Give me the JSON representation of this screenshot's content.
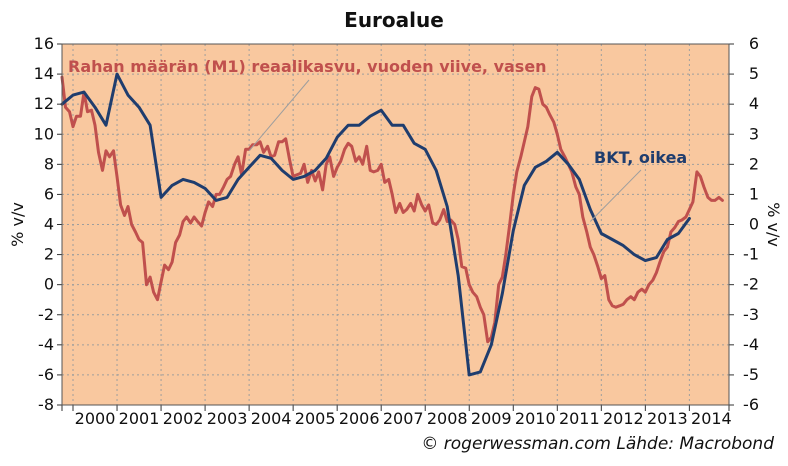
{
  "chart_data": {
    "type": "line",
    "title": "Euroalue",
    "credit": "© rogerwessman.com Lähde: Macrobond",
    "xlabel": "",
    "ylabel_left": "% v/v",
    "ylabel_right": "% v/v",
    "ylim_left": [
      -8,
      16
    ],
    "ylim_right": [
      -6,
      6
    ],
    "xlim": [
      1999.75,
      2014.9
    ],
    "x_tick_labels": [
      "2000",
      "2001",
      "2002",
      "2003",
      "2004",
      "2005",
      "2006",
      "2007",
      "2008",
      "2009",
      "2010",
      "2011",
      "2012",
      "2013",
      "2014"
    ],
    "y_ticks_left": [
      "16",
      "14",
      "12",
      "10",
      "8",
      "6",
      "4",
      "2",
      "0",
      "-2",
      "-4",
      "-6",
      "-8"
    ],
    "y_ticks_right": [
      "6",
      "5",
      "4",
      "3",
      "2",
      "1",
      "0",
      "-1",
      "-2",
      "-3",
      "-4",
      "-5",
      "-6"
    ],
    "grid": true,
    "background": "#f9c89f",
    "series": [
      {
        "name": "Rahan määrän (M1) reaalikasvu, vuoden viive, vasen",
        "label": "Rahan määrän (M1) reaalikasvu, vuoden viive, vasen",
        "axis": "left",
        "color": "#c0504d",
        "x": [
          1999.75,
          1999.83,
          1999.92,
          2000.0,
          2000.08,
          2000.17,
          2000.25,
          2000.33,
          2000.42,
          2000.5,
          2000.58,
          2000.67,
          2000.75,
          2000.83,
          2000.92,
          2001.0,
          2001.08,
          2001.17,
          2001.25,
          2001.33,
          2001.42,
          2001.5,
          2001.58,
          2001.67,
          2001.75,
          2001.83,
          2001.92,
          2002.0,
          2002.08,
          2002.17,
          2002.25,
          2002.33,
          2002.42,
          2002.5,
          2002.58,
          2002.67,
          2002.75,
          2002.83,
          2002.92,
          2003.0,
          2003.08,
          2003.17,
          2003.25,
          2003.33,
          2003.42,
          2003.5,
          2003.58,
          2003.67,
          2003.75,
          2003.83,
          2003.92,
          2004.0,
          2004.08,
          2004.17,
          2004.25,
          2004.33,
          2004.42,
          2004.5,
          2004.58,
          2004.67,
          2004.75,
          2004.83,
          2004.92,
          2005.0,
          2005.08,
          2005.17,
          2005.25,
          2005.33,
          2005.42,
          2005.5,
          2005.58,
          2005.67,
          2005.75,
          2005.83,
          2005.92,
          2006.0,
          2006.08,
          2006.17,
          2006.25,
          2006.33,
          2006.42,
          2006.5,
          2006.58,
          2006.67,
          2006.75,
          2006.83,
          2006.92,
          2007.0,
          2007.08,
          2007.17,
          2007.25,
          2007.33,
          2007.42,
          2007.5,
          2007.58,
          2007.67,
          2007.75,
          2007.83,
          2007.92,
          2008.0,
          2008.08,
          2008.17,
          2008.25,
          2008.33,
          2008.42,
          2008.5,
          2008.58,
          2008.67,
          2008.75,
          2008.83,
          2008.92,
          2009.0,
          2009.08,
          2009.17,
          2009.25,
          2009.33,
          2009.42,
          2009.5,
          2009.58,
          2009.67,
          2009.75,
          2009.83,
          2009.92,
          2010.0,
          2010.08,
          2010.17,
          2010.25,
          2010.33,
          2010.42,
          2010.5,
          2010.58,
          2010.67,
          2010.75,
          2010.83,
          2010.92,
          2011.0,
          2011.08,
          2011.17,
          2011.25,
          2011.33,
          2011.42,
          2011.5,
          2011.58,
          2011.67,
          2011.75,
          2011.83,
          2011.92,
          2012.0,
          2012.08,
          2012.17,
          2012.25,
          2012.33,
          2012.42,
          2012.5,
          2012.58,
          2012.67,
          2012.75,
          2012.83,
          2012.92,
          2013.0,
          2013.08,
          2013.17,
          2013.25,
          2013.33,
          2013.42,
          2013.5,
          2013.58,
          2013.67,
          2013.75,
          2013.83,
          2013.92,
          2014.0,
          2014.08,
          2014.17,
          2014.25,
          2014.33,
          2014.42,
          2014.5,
          2014.58,
          2014.67,
          2014.75
        ],
        "values": [
          13.8,
          11.8,
          11.5,
          10.5,
          11.2,
          11.2,
          12.8,
          11.5,
          11.6,
          10.6,
          8.8,
          7.6,
          8.9,
          8.5,
          8.9,
          7.2,
          5.3,
          4.6,
          5.2,
          4.0,
          3.5,
          3.0,
          2.8,
          0.0,
          0.5,
          -0.5,
          -1.0,
          0.2,
          1.3,
          1.0,
          1.5,
          2.8,
          3.3,
          4.2,
          4.5,
          4.1,
          4.5,
          4.2,
          3.9,
          4.8,
          5.5,
          5.2,
          6.0,
          6.0,
          6.5,
          7.0,
          7.2,
          8.0,
          8.5,
          7.3,
          9.0,
          9.0,
          9.3,
          9.3,
          9.5,
          8.8,
          9.2,
          8.5,
          8.6,
          9.5,
          9.5,
          9.7,
          8.3,
          7.2,
          7.3,
          7.4,
          8.0,
          6.8,
          7.6,
          6.9,
          7.5,
          6.3,
          8.0,
          8.5,
          7.2,
          7.8,
          8.2,
          9.0,
          9.4,
          9.2,
          8.2,
          8.5,
          8.0,
          9.2,
          7.6,
          7.5,
          7.6,
          8.0,
          6.8,
          7.0,
          6.0,
          4.8,
          5.4,
          4.8,
          5.0,
          5.4,
          4.9,
          6.0,
          5.3,
          4.9,
          5.3,
          4.1,
          4.0,
          4.3,
          5.0,
          4.2,
          4.3,
          4.0,
          3.0,
          1.2,
          1.1,
          0.0,
          -0.5,
          -0.8,
          -1.5,
          -2.0,
          -3.8,
          -3.5,
          -2.5,
          0.0,
          0.5,
          2.0,
          4.0,
          6.0,
          7.5,
          8.5,
          9.5,
          10.5,
          12.5,
          13.1,
          13.0,
          12.0,
          11.8,
          11.3,
          10.8,
          10.0,
          9.0,
          8.5,
          8.0,
          7.5,
          6.5,
          6.0,
          4.5,
          3.5,
          2.5,
          2.0,
          1.2,
          0.4,
          0.6,
          -1.0,
          -1.4,
          -1.5,
          -1.4,
          -1.3,
          -1.0,
          -0.8,
          -1.0,
          -0.5,
          -0.3,
          -0.5,
          0.0,
          0.3,
          0.8,
          1.5,
          2.2,
          2.5,
          3.5,
          3.8,
          4.2,
          4.3,
          4.5,
          5.0,
          5.5,
          7.5,
          7.2,
          6.5,
          5.8,
          5.6,
          5.6,
          5.8,
          5.6
        ]
      },
      {
        "name": "BKT, oikea",
        "label": "BKT, oikea",
        "axis": "right",
        "color": "#1f3d6e",
        "x": [
          1999.75,
          2000.0,
          2000.25,
          2000.5,
          2000.75,
          2001.0,
          2001.25,
          2001.5,
          2001.75,
          2002.0,
          2002.25,
          2002.5,
          2002.75,
          2003.0,
          2003.25,
          2003.5,
          2003.75,
          2004.0,
          2004.25,
          2004.5,
          2004.75,
          2005.0,
          2005.25,
          2005.5,
          2005.75,
          2006.0,
          2006.25,
          2006.5,
          2006.75,
          2007.0,
          2007.25,
          2007.5,
          2007.75,
          2008.0,
          2008.25,
          2008.5,
          2008.75,
          2009.0,
          2009.25,
          2009.5,
          2009.75,
          2010.0,
          2010.25,
          2010.5,
          2010.75,
          2011.0,
          2011.25,
          2011.5,
          2011.75,
          2012.0,
          2012.25,
          2012.5,
          2012.75,
          2013.0,
          2013.25,
          2013.5,
          2013.75,
          2014.0
        ],
        "values": [
          4.0,
          4.3,
          4.4,
          3.9,
          3.3,
          5.0,
          4.3,
          3.9,
          3.3,
          0.9,
          1.3,
          1.5,
          1.4,
          1.2,
          0.8,
          0.9,
          1.5,
          1.9,
          2.3,
          2.2,
          1.8,
          1.5,
          1.6,
          1.8,
          2.2,
          2.9,
          3.3,
          3.3,
          3.6,
          3.8,
          3.3,
          3.3,
          2.7,
          2.5,
          1.8,
          0.6,
          -1.7,
          -5.0,
          -4.9,
          -4.0,
          -2.3,
          -0.2,
          1.3,
          1.9,
          2.1,
          2.4,
          2.0,
          1.5,
          0.5,
          -0.3,
          -0.5,
          -0.7,
          -1.0,
          -1.2,
          -1.1,
          -0.5,
          -0.3,
          0.2
        ]
      }
    ],
    "annotations": [
      {
        "text": "Rahan määrän (M1) reaalikasvu, vuoden viive, vasen",
        "series": 0
      },
      {
        "text": "BKT, oikea",
        "series": 1
      }
    ]
  }
}
